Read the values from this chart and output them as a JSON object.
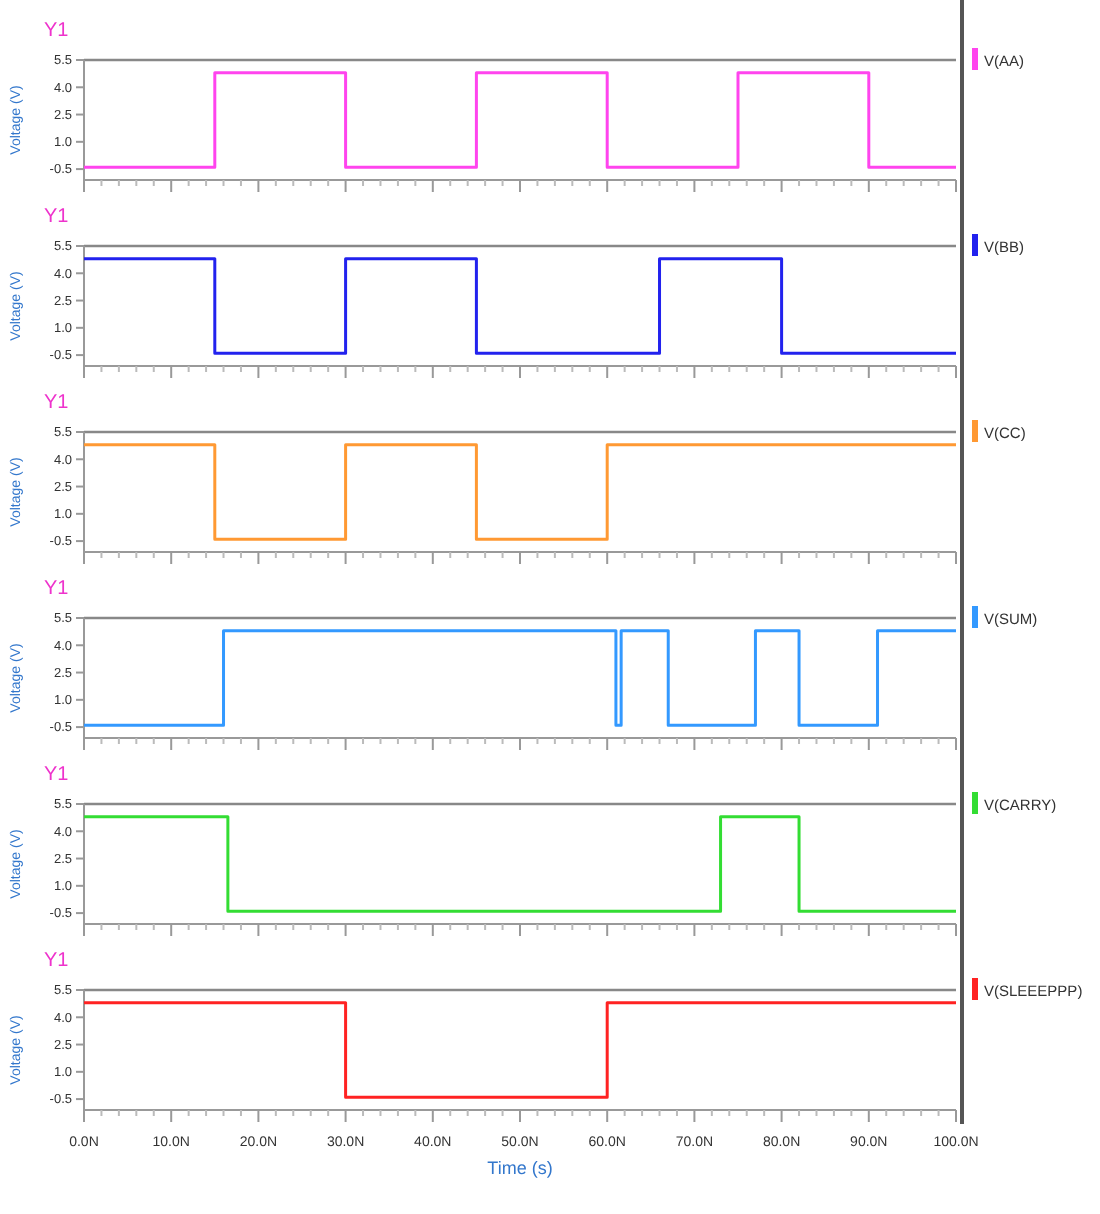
{
  "chart_data": [
    {
      "type": "step",
      "annotations": [
        "Y1"
      ],
      "ylabel": "Voltage (V)",
      "xlim": [
        0,
        100
      ],
      "ylim": [
        -1.1,
        5.5
      ],
      "tick_labels": "y",
      "legend": "right",
      "xticks": [
        0,
        10,
        20,
        30,
        40,
        50,
        60,
        70,
        80,
        90,
        100
      ],
      "yticks": [
        {
          "value": -0.5,
          "label": "-0.5"
        },
        {
          "value": 1,
          "label": "1.0"
        },
        {
          "value": 2.5,
          "label": "2.5"
        },
        {
          "value": 4,
          "label": "4.0"
        },
        {
          "value": 5.5,
          "label": "5.5"
        }
      ],
      "series": [
        {
          "name": "V(AA)",
          "color": "#ff44ee",
          "x": [
            0,
            15,
            30,
            45,
            60,
            75,
            90,
            100
          ],
          "values": [
            -0.4,
            4.8,
            -0.4,
            4.8,
            -0.4,
            4.8,
            -0.4,
            -0.4
          ]
        }
      ]
    },
    {
      "type": "step",
      "annotations": [
        "Y1"
      ],
      "ylabel": "Voltage (V)",
      "xlim": [
        0,
        100
      ],
      "ylim": [
        -1.1,
        5.5
      ],
      "tick_labels": "y",
      "legend": "right",
      "xticks": [
        0,
        10,
        20,
        30,
        40,
        50,
        60,
        70,
        80,
        90,
        100
      ],
      "yticks": [
        {
          "value": -0.5,
          "label": "-0.5"
        },
        {
          "value": 1,
          "label": "1.0"
        },
        {
          "value": 2.5,
          "label": "2.5"
        },
        {
          "value": 4,
          "label": "4.0"
        },
        {
          "value": 5.5,
          "label": "5.5"
        }
      ],
      "series": [
        {
          "name": "V(BB)",
          "color": "#2222ee",
          "x": [
            0,
            15,
            30,
            45,
            66,
            80,
            100
          ],
          "values": [
            4.8,
            -0.4,
            4.8,
            -0.4,
            4.8,
            -0.4,
            -0.4
          ]
        }
      ]
    },
    {
      "type": "step",
      "annotations": [
        "Y1"
      ],
      "ylabel": "Voltage (V)",
      "xlim": [
        0,
        100
      ],
      "ylim": [
        -1.1,
        5.5
      ],
      "tick_labels": "y",
      "legend": "right",
      "xticks": [
        0,
        10,
        20,
        30,
        40,
        50,
        60,
        70,
        80,
        90,
        100
      ],
      "yticks": [
        {
          "value": -0.5,
          "label": "-0.5"
        },
        {
          "value": 1,
          "label": "1.0"
        },
        {
          "value": 2.5,
          "label": "2.5"
        },
        {
          "value": 4,
          "label": "4.0"
        },
        {
          "value": 5.5,
          "label": "5.5"
        }
      ],
      "series": [
        {
          "name": "V(CC)",
          "color": "#ff9933",
          "x": [
            0,
            15,
            30,
            45,
            60,
            100
          ],
          "values": [
            4.8,
            -0.4,
            4.8,
            -0.4,
            4.8,
            4.8
          ]
        }
      ]
    },
    {
      "type": "step",
      "annotations": [
        "Y1"
      ],
      "ylabel": "Voltage (V)",
      "xlim": [
        0,
        100
      ],
      "ylim": [
        -1.1,
        5.5
      ],
      "tick_labels": "y",
      "legend": "right",
      "xticks": [
        0,
        10,
        20,
        30,
        40,
        50,
        60,
        70,
        80,
        90,
        100
      ],
      "yticks": [
        {
          "value": -0.5,
          "label": "-0.5"
        },
        {
          "value": 1,
          "label": "1.0"
        },
        {
          "value": 2.5,
          "label": "2.5"
        },
        {
          "value": 4,
          "label": "4.0"
        },
        {
          "value": 5.5,
          "label": "5.5"
        }
      ],
      "series": [
        {
          "name": "V(SUM)",
          "color": "#3399ff",
          "x": [
            0,
            16,
            61,
            61.6,
            67,
            77,
            82,
            91,
            100
          ],
          "values": [
            -0.4,
            4.8,
            -0.4,
            4.8,
            -0.4,
            4.8,
            -0.4,
            4.8,
            4.8
          ]
        }
      ]
    },
    {
      "type": "step",
      "annotations": [
        "Y1"
      ],
      "ylabel": "Voltage (V)",
      "xlim": [
        0,
        100
      ],
      "ylim": [
        -1.1,
        5.5
      ],
      "tick_labels": "y",
      "legend": "right",
      "xticks": [
        0,
        10,
        20,
        30,
        40,
        50,
        60,
        70,
        80,
        90,
        100
      ],
      "yticks": [
        {
          "value": -0.5,
          "label": "-0.5"
        },
        {
          "value": 1,
          "label": "1.0"
        },
        {
          "value": 2.5,
          "label": "2.5"
        },
        {
          "value": 4,
          "label": "4.0"
        },
        {
          "value": 5.5,
          "label": "5.5"
        }
      ],
      "series": [
        {
          "name": "V(CARRY)",
          "color": "#33dd33",
          "x": [
            0,
            16.5,
            73,
            82,
            100
          ],
          "values": [
            4.8,
            -0.4,
            4.8,
            -0.4,
            -0.4
          ]
        }
      ]
    },
    {
      "type": "step",
      "annotations": [
        "Y1"
      ],
      "ylabel": "Voltage (V)",
      "xlabel": "Time (s)",
      "xlim": [
        0,
        100
      ],
      "ylim": [
        -1.1,
        5.5
      ],
      "legend": "right",
      "xticks": [
        {
          "value": 0,
          "label": "0.0N"
        },
        {
          "value": 10,
          "label": "10.0N"
        },
        {
          "value": 20,
          "label": "20.0N"
        },
        {
          "value": 30,
          "label": "30.0N"
        },
        {
          "value": 40,
          "label": "40.0N"
        },
        {
          "value": 50,
          "label": "50.0N"
        },
        {
          "value": 60,
          "label": "60.0N"
        },
        {
          "value": 70,
          "label": "70.0N"
        },
        {
          "value": 80,
          "label": "80.0N"
        },
        {
          "value": 90,
          "label": "90.0N"
        },
        {
          "value": 100,
          "label": "100.0N"
        }
      ],
      "yticks": [
        {
          "value": -0.5,
          "label": "-0.5"
        },
        {
          "value": 1,
          "label": "1.0"
        },
        {
          "value": 2.5,
          "label": "2.5"
        },
        {
          "value": 4,
          "label": "4.0"
        },
        {
          "value": 5.5,
          "label": "5.5"
        }
      ],
      "series": [
        {
          "name": "V(SLEEEPPP)",
          "color": "#ff2222",
          "x": [
            0,
            30,
            60,
            100
          ],
          "values": [
            4.8,
            -0.4,
            4.8,
            4.8
          ]
        }
      ]
    }
  ]
}
